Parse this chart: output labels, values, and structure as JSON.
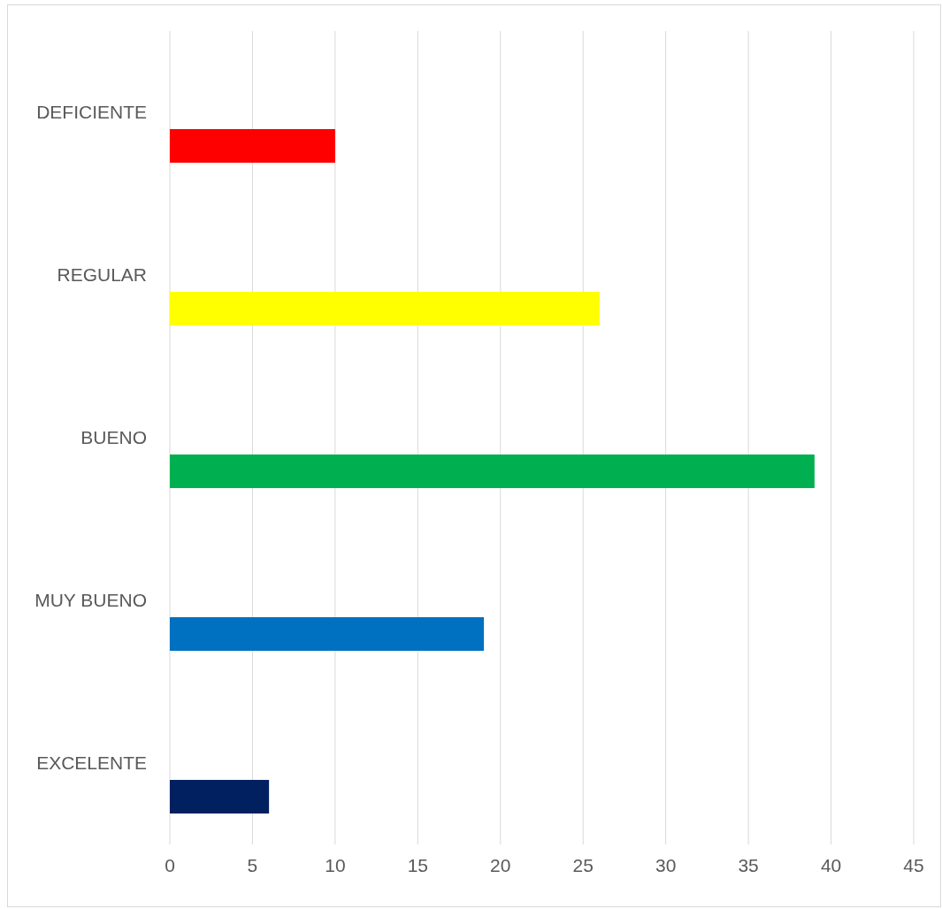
{
  "chart_data": {
    "type": "bar",
    "orientation": "horizontal",
    "categories": [
      "DEFICIENTE",
      "REGULAR",
      "BUENO",
      "MUY BUENO",
      "EXCELENTE"
    ],
    "values": [
      10,
      26,
      39,
      19,
      6
    ],
    "colors": [
      "#ff0000",
      "#ffff00",
      "#00b050",
      "#0070c0",
      "#002060"
    ],
    "xlim": [
      0,
      45
    ],
    "xticks": [
      0,
      5,
      10,
      15,
      20,
      25,
      30,
      35,
      40,
      45
    ],
    "grid": "x"
  }
}
